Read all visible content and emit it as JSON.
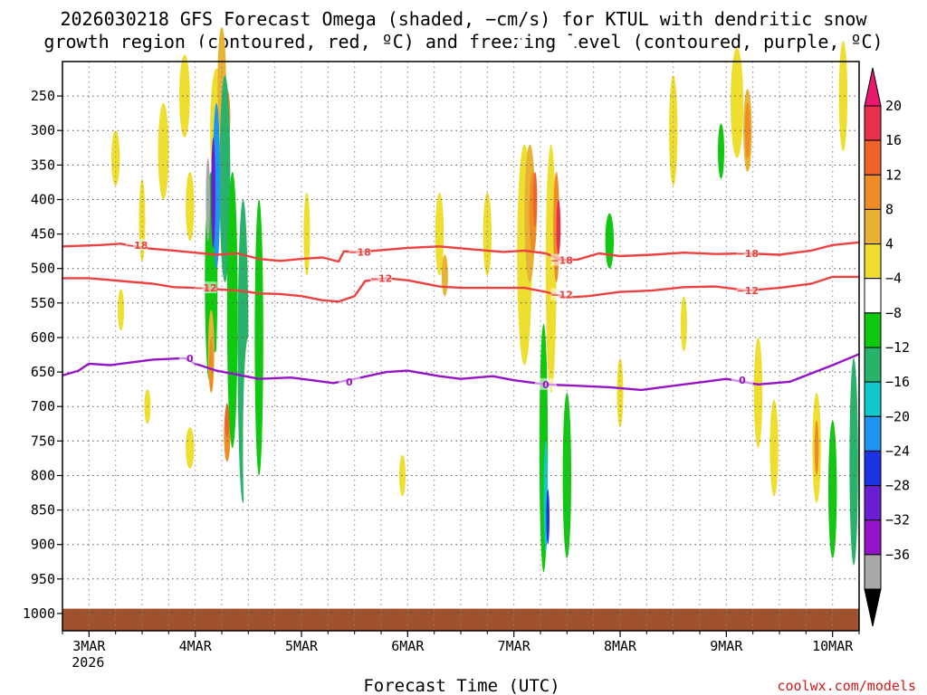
{
  "chart_data": {
    "type": "heatmap",
    "title_lines": [
      "2026030218 GFS Forecast Omega (shaded, −cm/s) for KTUL with dendritic snow",
      "growth region (contoured, red, ºC) and freezing level (contoured, purple, ºC)"
    ],
    "xlabel": "Forecast Time (UTC)",
    "credit": "coolwx.com/models",
    "x_range_days": [
      2.75,
      10.25
    ],
    "y_range_hpa": [
      1025,
      200
    ],
    "x_ticks": [
      {
        "t": 3,
        "label": "3MAR",
        "sub": "2026"
      },
      {
        "t": 4,
        "label": "4MAR",
        "sub": ""
      },
      {
        "t": 5,
        "label": "5MAR",
        "sub": ""
      },
      {
        "t": 6,
        "label": "6MAR",
        "sub": ""
      },
      {
        "t": 7,
        "label": "7MAR",
        "sub": ""
      },
      {
        "t": 8,
        "label": "8MAR",
        "sub": ""
      },
      {
        "t": 9,
        "label": "9MAR",
        "sub": ""
      },
      {
        "t": 10,
        "label": "10MAR",
        "sub": ""
      }
    ],
    "y_ticks": [
      {
        "p": 250,
        "label": "250"
      },
      {
        "p": 300,
        "label": "300"
      },
      {
        "p": 350,
        "label": "350"
      },
      {
        "p": 400,
        "label": "400"
      },
      {
        "p": 450,
        "label": "450"
      },
      {
        "p": 500,
        "label": "500"
      },
      {
        "p": 550,
        "label": "550"
      },
      {
        "p": 600,
        "label": "600"
      },
      {
        "p": 650,
        "label": "650"
      },
      {
        "p": 700,
        "label": "700"
      },
      {
        "p": 750,
        "label": "750"
      },
      {
        "p": 800,
        "label": "800"
      },
      {
        "p": 850,
        "label": "850"
      },
      {
        "p": 900,
        "label": "900"
      },
      {
        "p": 950,
        "label": "950"
      },
      {
        "p": 1000,
        "label": "1000"
      }
    ],
    "colorbar": {
      "labels": [
        "20",
        "16",
        "12",
        "8",
        "4",
        "−4",
        "−8",
        "−12",
        "−16",
        "−20",
        "−24",
        "−28",
        "−32",
        "−36"
      ],
      "bins": [
        {
          "min": 16,
          "max": 20,
          "color": "#e8304a"
        },
        {
          "min": 12,
          "max": 16,
          "color": "#f0642a"
        },
        {
          "min": 8,
          "max": 12,
          "color": "#ee8c28"
        },
        {
          "min": 4,
          "max": 8,
          "color": "#e8b234"
        },
        {
          "min": 0,
          "max": 4,
          "color": "#eede30"
        },
        {
          "min": -4,
          "max": 4,
          "color": "#ffffff"
        },
        {
          "min": -8,
          "max": -4,
          "color": "#10c810"
        },
        {
          "min": -12,
          "max": -8,
          "color": "#28b26a"
        },
        {
          "min": -16,
          "max": -12,
          "color": "#10c8c8"
        },
        {
          "min": -20,
          "max": -16,
          "color": "#1e96f0"
        },
        {
          "min": -24,
          "max": -20,
          "color": "#1e32e6"
        },
        {
          "min": -28,
          "max": -24,
          "color": "#6a1ed2"
        },
        {
          "min": -32,
          "max": -28,
          "color": "#9614c8"
        },
        {
          "min": -36,
          "max": -32,
          "color": "#a8a8a8"
        }
      ],
      "top_arrow_color": "#e8196e",
      "bottom_arrow_color": "#000000"
    },
    "ground": {
      "color": "#a0522d",
      "pressure_top_hpa": 993
    },
    "contours": {
      "minus18": {
        "label": "−18",
        "color": "#ee4040",
        "points": [
          [
            2.75,
            468
          ],
          [
            3.1,
            466
          ],
          [
            3.3,
            464
          ],
          [
            3.5,
            470
          ],
          [
            3.8,
            474
          ],
          [
            4.0,
            477
          ],
          [
            4.2,
            480
          ],
          [
            4.4,
            478
          ],
          [
            4.6,
            486
          ],
          [
            4.8,
            489
          ],
          [
            5.0,
            486
          ],
          [
            5.2,
            484
          ],
          [
            5.35,
            490
          ],
          [
            5.4,
            475
          ],
          [
            5.55,
            476
          ],
          [
            5.7,
            474
          ],
          [
            6.0,
            470
          ],
          [
            6.3,
            468
          ],
          [
            6.6,
            472
          ],
          [
            6.9,
            476
          ],
          [
            7.1,
            474
          ],
          [
            7.3,
            478
          ],
          [
            7.45,
            488
          ],
          [
            7.6,
            487
          ],
          [
            7.8,
            478
          ],
          [
            8.0,
            482
          ],
          [
            8.3,
            480
          ],
          [
            8.6,
            477
          ],
          [
            8.9,
            479
          ],
          [
            9.2,
            478
          ],
          [
            9.5,
            480
          ],
          [
            9.8,
            474
          ],
          [
            10.0,
            466
          ],
          [
            10.25,
            462
          ]
        ],
        "label_at": [
          [
            3.45,
            466
          ],
          [
            5.55,
            476
          ],
          [
            7.45,
            488
          ],
          [
            9.2,
            478
          ]
        ]
      },
      "minus12": {
        "label": "−12",
        "color": "#ee4040",
        "points": [
          [
            2.75,
            514
          ],
          [
            3.0,
            514
          ],
          [
            3.3,
            518
          ],
          [
            3.6,
            522
          ],
          [
            3.8,
            527
          ],
          [
            4.0,
            528
          ],
          [
            4.2,
            530
          ],
          [
            4.4,
            532
          ],
          [
            4.6,
            536
          ],
          [
            4.8,
            537
          ],
          [
            5.0,
            540
          ],
          [
            5.2,
            546
          ],
          [
            5.35,
            548
          ],
          [
            5.5,
            540
          ],
          [
            5.6,
            518
          ],
          [
            5.8,
            514
          ],
          [
            6.0,
            517
          ],
          [
            6.3,
            526
          ],
          [
            6.5,
            528
          ],
          [
            6.8,
            528
          ],
          [
            7.1,
            528
          ],
          [
            7.3,
            534
          ],
          [
            7.5,
            542
          ],
          [
            7.7,
            540
          ],
          [
            8.0,
            534
          ],
          [
            8.3,
            532
          ],
          [
            8.6,
            527
          ],
          [
            8.9,
            526
          ],
          [
            9.2,
            532
          ],
          [
            9.5,
            528
          ],
          [
            9.8,
            522
          ],
          [
            10.0,
            512
          ],
          [
            10.25,
            512
          ]
        ],
        "label_at": [
          [
            4.1,
            528
          ],
          [
            5.75,
            514
          ],
          [
            7.45,
            538
          ],
          [
            9.2,
            532
          ]
        ]
      },
      "zero": {
        "label": "0",
        "color": "#9614c8",
        "points": [
          [
            2.75,
            655
          ],
          [
            2.9,
            648
          ],
          [
            3.0,
            638
          ],
          [
            3.2,
            640
          ],
          [
            3.4,
            636
          ],
          [
            3.6,
            632
          ],
          [
            3.9,
            630
          ],
          [
            4.0,
            638
          ],
          [
            4.2,
            648
          ],
          [
            4.4,
            654
          ],
          [
            4.6,
            660
          ],
          [
            4.9,
            658
          ],
          [
            5.1,
            662
          ],
          [
            5.3,
            666
          ],
          [
            5.5,
            660
          ],
          [
            5.8,
            650
          ],
          [
            6.0,
            648
          ],
          [
            6.3,
            656
          ],
          [
            6.5,
            660
          ],
          [
            6.8,
            656
          ],
          [
            7.0,
            662
          ],
          [
            7.3,
            668
          ],
          [
            7.6,
            670
          ],
          [
            7.9,
            672
          ],
          [
            8.2,
            676
          ],
          [
            8.5,
            670
          ],
          [
            8.8,
            664
          ],
          [
            9.0,
            660
          ],
          [
            9.3,
            668
          ],
          [
            9.6,
            664
          ],
          [
            9.8,
            652
          ],
          [
            10.0,
            640
          ],
          [
            10.25,
            624
          ]
        ],
        "label_at": [
          [
            3.95,
            630
          ],
          [
            5.45,
            664
          ],
          [
            7.3,
            668
          ],
          [
            9.15,
            662
          ]
        ]
      }
    }
  }
}
